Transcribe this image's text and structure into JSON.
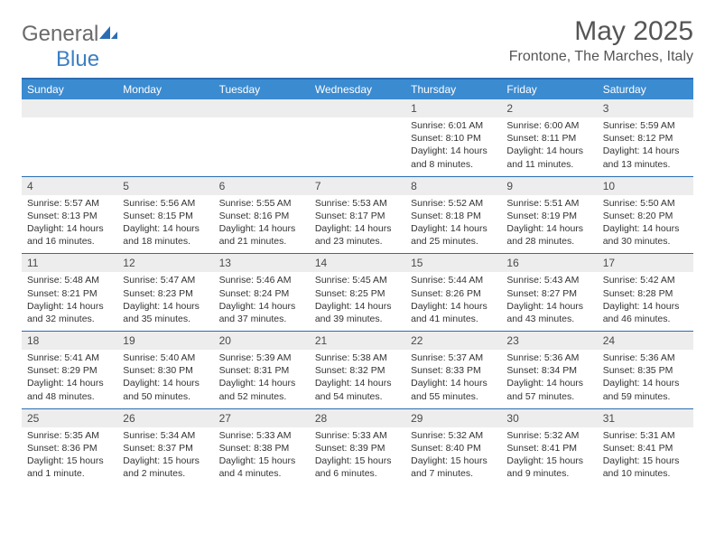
{
  "logo": {
    "text1": "General",
    "text2": "Blue"
  },
  "title": "May 2025",
  "location": "Frontone, The Marches, Italy",
  "colors": {
    "header_bg": "#3b8bd1",
    "border": "#2a6db3",
    "num_bg": "#ededed",
    "text": "#333333",
    "logo_gray": "#6a6a6a",
    "logo_blue": "#3b7fc4"
  },
  "fonts": {
    "title_pt": 30,
    "location_pt": 16,
    "head_pt": 12,
    "num_pt": 12,
    "cell_pt": 10.5
  },
  "days": [
    "Sunday",
    "Monday",
    "Tuesday",
    "Wednesday",
    "Thursday",
    "Friday",
    "Saturday"
  ],
  "weeks": [
    {
      "nums": [
        "",
        "",
        "",
        "",
        "1",
        "2",
        "3"
      ],
      "cells": [
        null,
        null,
        null,
        null,
        {
          "sunrise": "Sunrise: 6:01 AM",
          "sunset": "Sunset: 8:10 PM",
          "day1": "Daylight: 14 hours",
          "day2": "and 8 minutes."
        },
        {
          "sunrise": "Sunrise: 6:00 AM",
          "sunset": "Sunset: 8:11 PM",
          "day1": "Daylight: 14 hours",
          "day2": "and 11 minutes."
        },
        {
          "sunrise": "Sunrise: 5:59 AM",
          "sunset": "Sunset: 8:12 PM",
          "day1": "Daylight: 14 hours",
          "day2": "and 13 minutes."
        }
      ]
    },
    {
      "nums": [
        "4",
        "5",
        "6",
        "7",
        "8",
        "9",
        "10"
      ],
      "cells": [
        {
          "sunrise": "Sunrise: 5:57 AM",
          "sunset": "Sunset: 8:13 PM",
          "day1": "Daylight: 14 hours",
          "day2": "and 16 minutes."
        },
        {
          "sunrise": "Sunrise: 5:56 AM",
          "sunset": "Sunset: 8:15 PM",
          "day1": "Daylight: 14 hours",
          "day2": "and 18 minutes."
        },
        {
          "sunrise": "Sunrise: 5:55 AM",
          "sunset": "Sunset: 8:16 PM",
          "day1": "Daylight: 14 hours",
          "day2": "and 21 minutes."
        },
        {
          "sunrise": "Sunrise: 5:53 AM",
          "sunset": "Sunset: 8:17 PM",
          "day1": "Daylight: 14 hours",
          "day2": "and 23 minutes."
        },
        {
          "sunrise": "Sunrise: 5:52 AM",
          "sunset": "Sunset: 8:18 PM",
          "day1": "Daylight: 14 hours",
          "day2": "and 25 minutes."
        },
        {
          "sunrise": "Sunrise: 5:51 AM",
          "sunset": "Sunset: 8:19 PM",
          "day1": "Daylight: 14 hours",
          "day2": "and 28 minutes."
        },
        {
          "sunrise": "Sunrise: 5:50 AM",
          "sunset": "Sunset: 8:20 PM",
          "day1": "Daylight: 14 hours",
          "day2": "and 30 minutes."
        }
      ]
    },
    {
      "nums": [
        "11",
        "12",
        "13",
        "14",
        "15",
        "16",
        "17"
      ],
      "cells": [
        {
          "sunrise": "Sunrise: 5:48 AM",
          "sunset": "Sunset: 8:21 PM",
          "day1": "Daylight: 14 hours",
          "day2": "and 32 minutes."
        },
        {
          "sunrise": "Sunrise: 5:47 AM",
          "sunset": "Sunset: 8:23 PM",
          "day1": "Daylight: 14 hours",
          "day2": "and 35 minutes."
        },
        {
          "sunrise": "Sunrise: 5:46 AM",
          "sunset": "Sunset: 8:24 PM",
          "day1": "Daylight: 14 hours",
          "day2": "and 37 minutes."
        },
        {
          "sunrise": "Sunrise: 5:45 AM",
          "sunset": "Sunset: 8:25 PM",
          "day1": "Daylight: 14 hours",
          "day2": "and 39 minutes."
        },
        {
          "sunrise": "Sunrise: 5:44 AM",
          "sunset": "Sunset: 8:26 PM",
          "day1": "Daylight: 14 hours",
          "day2": "and 41 minutes."
        },
        {
          "sunrise": "Sunrise: 5:43 AM",
          "sunset": "Sunset: 8:27 PM",
          "day1": "Daylight: 14 hours",
          "day2": "and 43 minutes."
        },
        {
          "sunrise": "Sunrise: 5:42 AM",
          "sunset": "Sunset: 8:28 PM",
          "day1": "Daylight: 14 hours",
          "day2": "and 46 minutes."
        }
      ]
    },
    {
      "nums": [
        "18",
        "19",
        "20",
        "21",
        "22",
        "23",
        "24"
      ],
      "cells": [
        {
          "sunrise": "Sunrise: 5:41 AM",
          "sunset": "Sunset: 8:29 PM",
          "day1": "Daylight: 14 hours",
          "day2": "and 48 minutes."
        },
        {
          "sunrise": "Sunrise: 5:40 AM",
          "sunset": "Sunset: 8:30 PM",
          "day1": "Daylight: 14 hours",
          "day2": "and 50 minutes."
        },
        {
          "sunrise": "Sunrise: 5:39 AM",
          "sunset": "Sunset: 8:31 PM",
          "day1": "Daylight: 14 hours",
          "day2": "and 52 minutes."
        },
        {
          "sunrise": "Sunrise: 5:38 AM",
          "sunset": "Sunset: 8:32 PM",
          "day1": "Daylight: 14 hours",
          "day2": "and 54 minutes."
        },
        {
          "sunrise": "Sunrise: 5:37 AM",
          "sunset": "Sunset: 8:33 PM",
          "day1": "Daylight: 14 hours",
          "day2": "and 55 minutes."
        },
        {
          "sunrise": "Sunrise: 5:36 AM",
          "sunset": "Sunset: 8:34 PM",
          "day1": "Daylight: 14 hours",
          "day2": "and 57 minutes."
        },
        {
          "sunrise": "Sunrise: 5:36 AM",
          "sunset": "Sunset: 8:35 PM",
          "day1": "Daylight: 14 hours",
          "day2": "and 59 minutes."
        }
      ]
    },
    {
      "nums": [
        "25",
        "26",
        "27",
        "28",
        "29",
        "30",
        "31"
      ],
      "cells": [
        {
          "sunrise": "Sunrise: 5:35 AM",
          "sunset": "Sunset: 8:36 PM",
          "day1": "Daylight: 15 hours",
          "day2": "and 1 minute."
        },
        {
          "sunrise": "Sunrise: 5:34 AM",
          "sunset": "Sunset: 8:37 PM",
          "day1": "Daylight: 15 hours",
          "day2": "and 2 minutes."
        },
        {
          "sunrise": "Sunrise: 5:33 AM",
          "sunset": "Sunset: 8:38 PM",
          "day1": "Daylight: 15 hours",
          "day2": "and 4 minutes."
        },
        {
          "sunrise": "Sunrise: 5:33 AM",
          "sunset": "Sunset: 8:39 PM",
          "day1": "Daylight: 15 hours",
          "day2": "and 6 minutes."
        },
        {
          "sunrise": "Sunrise: 5:32 AM",
          "sunset": "Sunset: 8:40 PM",
          "day1": "Daylight: 15 hours",
          "day2": "and 7 minutes."
        },
        {
          "sunrise": "Sunrise: 5:32 AM",
          "sunset": "Sunset: 8:41 PM",
          "day1": "Daylight: 15 hours",
          "day2": "and 9 minutes."
        },
        {
          "sunrise": "Sunrise: 5:31 AM",
          "sunset": "Sunset: 8:41 PM",
          "day1": "Daylight: 15 hours",
          "day2": "and 10 minutes."
        }
      ]
    }
  ]
}
